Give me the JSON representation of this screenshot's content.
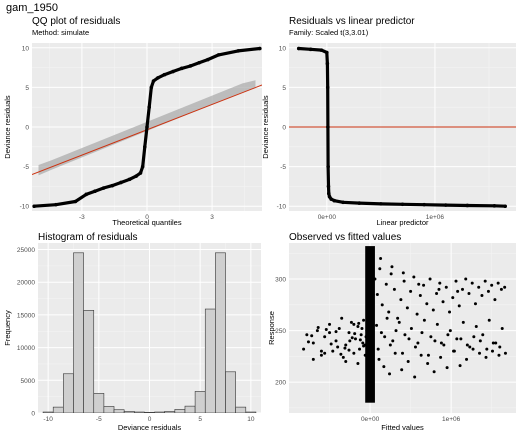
{
  "page": {
    "title": "gam_1950"
  },
  "colors": {
    "panel_bg": "#ebebeb",
    "grid_major": "#ffffff",
    "grid_minor": "#f5f5f5",
    "points": "#000000",
    "ref_line": "#cc3311",
    "band": "#a8a8a8",
    "bar_fill": "#cfcfcf",
    "bar_stroke": "#333333"
  },
  "chart_data": [
    {
      "id": "qq",
      "type": "line",
      "title": "QQ plot of residuals",
      "subtitle": "Method: simulate",
      "xlabel": "Theoretical quantiles",
      "ylabel": "Deviance residuals",
      "xlim": [
        -5.3,
        5.3
      ],
      "ylim": [
        -10.6,
        10.6
      ],
      "xticks": [
        -3,
        0,
        3
      ],
      "yticks": [
        -10,
        -5,
        0,
        5,
        10
      ],
      "reference_line": {
        "x": [
          -5.3,
          5.3
        ],
        "y": [
          -6.0,
          5.3
        ]
      },
      "band": {
        "x": [
          -5.0,
          -4.4,
          4.4,
          5.0
        ],
        "upper": [
          -4.8,
          -4.2,
          5.5,
          5.9
        ],
        "lower": [
          -6.1,
          -5.4,
          4.4,
          4.9
        ]
      },
      "series": [
        {
          "x": [
            -5.2,
            -4.2,
            -3.3,
            -2.8,
            -2.4,
            -2.0,
            -1.6,
            -1.2,
            -0.8,
            -0.5,
            -0.3,
            -0.2,
            -0.1,
            0.0,
            0.1,
            0.2,
            0.3,
            0.5,
            0.8,
            1.2,
            1.6,
            2.0,
            2.4,
            2.8,
            3.3,
            4.2,
            5.2
          ],
          "y": [
            -10.0,
            -9.8,
            -9.4,
            -8.5,
            -8.1,
            -7.7,
            -7.4,
            -7.0,
            -6.6,
            -6.2,
            -5.8,
            -5.0,
            -2.5,
            0.0,
            2.5,
            5.0,
            5.8,
            6.2,
            6.6,
            7.0,
            7.4,
            7.7,
            8.1,
            8.5,
            9.1,
            9.6,
            9.9
          ]
        }
      ]
    },
    {
      "id": "resid_lp",
      "type": "scatter",
      "title": "Residuals vs linear predictor",
      "subtitle": "Family: Scaled t(3,3.01)",
      "xlabel": "Linear predictor",
      "ylabel": "Deviance residuals",
      "xlim": [
        -350000,
        1750000
      ],
      "ylim": [
        -10.6,
        10.6
      ],
      "xticks": [
        0,
        1000000
      ],
      "xtick_labels": [
        "0e+00",
        "1e+06"
      ],
      "yticks": [
        -10,
        -5,
        0,
        5,
        10
      ],
      "hline": 0,
      "series": [
        {
          "x": [
            -260000,
            -150000,
            -50000,
            0,
            5000,
            8000,
            10000,
            12000,
            15000,
            18000,
            25000,
            40000,
            70000,
            150000,
            300000,
            500000,
            700000,
            900000,
            1100000,
            1300000,
            1550000,
            1650000
          ],
          "y": [
            9.9,
            9.8,
            9.7,
            9.4,
            8.0,
            5.0,
            0.0,
            -5.0,
            -7.5,
            -8.4,
            -8.8,
            -9.1,
            -9.3,
            -9.5,
            -9.6,
            -9.7,
            -9.75,
            -9.8,
            -9.85,
            -9.9,
            -9.95,
            -10.0
          ]
        }
      ]
    },
    {
      "id": "hist",
      "type": "bar",
      "title": "Histogram of residuals",
      "xlabel": "Deviance residuals",
      "ylabel": "Frequency",
      "xlim": [
        -11,
        11
      ],
      "ylim": [
        0,
        26000
      ],
      "xticks": [
        -10,
        -5,
        0,
        5,
        10
      ],
      "yticks": [
        0,
        5000,
        10000,
        15000,
        20000,
        25000
      ],
      "bin_width": 1,
      "bins": [
        -10.5,
        -9.5,
        -8.5,
        -7.5,
        -6.5,
        -5.5,
        -4.5,
        -3.5,
        -2.5,
        -1.5,
        -0.5,
        0.5,
        1.5,
        2.5,
        3.5,
        4.5,
        5.5,
        6.5,
        7.5,
        8.5,
        9.5
      ],
      "values": [
        150,
        900,
        6000,
        24500,
        15700,
        3000,
        1000,
        500,
        250,
        150,
        100,
        150,
        250,
        550,
        1050,
        3300,
        15900,
        24500,
        6300,
        900,
        150
      ]
    },
    {
      "id": "obs_fit",
      "type": "scatter",
      "title": "Observed vs fitted values",
      "xlabel": "Fitted values",
      "ylabel": "Response",
      "xlim": [
        -1000000,
        1800000
      ],
      "ylim": [
        170,
        335
      ],
      "xticks": [
        0,
        1000000
      ],
      "xtick_labels": [
        "0e+00",
        "1e+06"
      ],
      "yticks": [
        200,
        250,
        300
      ],
      "series": [
        {
          "x": [
            -820000,
            -780000,
            -700000,
            -650000,
            -600000,
            -560000,
            -500000,
            -460000,
            -420000,
            -380000,
            -330000,
            -300000,
            -260000,
            -230000,
            -200000,
            -180000,
            -150000,
            -130000,
            -110000,
            -90000,
            -80000,
            -60000,
            -50000,
            -40000,
            -700000,
            -600000,
            -500000,
            -400000,
            -350000,
            -300000,
            -250000,
            -200000,
            -150000,
            -100000,
            -60000,
            -720000,
            -560000,
            -420000,
            -310000,
            -190000,
            -120000,
            -640000,
            -480000,
            -260000,
            -140000,
            -760000,
            -540000,
            -360000,
            -220000,
            -80000,
            60000,
            90000,
            120000,
            150000,
            200000,
            230000,
            260000,
            300000,
            340000,
            380000,
            420000,
            460000,
            500000,
            540000,
            580000,
            620000,
            660000,
            700000,
            740000,
            780000,
            820000,
            860000,
            900000,
            940000,
            980000,
            1020000,
            1060000,
            1100000,
            1140000,
            1180000,
            1220000,
            1260000,
            1300000,
            1340000,
            1380000,
            1420000,
            1460000,
            1500000,
            1540000,
            1580000,
            1620000,
            1660000,
            80000,
            140000,
            210000,
            280000,
            360000,
            430000,
            510000,
            590000,
            670000,
            750000,
            830000,
            910000,
            990000,
            1070000,
            1150000,
            1230000,
            1310000,
            1390000,
            1470000,
            1550000,
            1630000,
            100000,
            180000,
            250000,
            320000,
            400000,
            480000,
            560000,
            640000,
            720000,
            800000,
            880000,
            960000,
            1040000,
            1120000,
            1200000,
            1280000,
            1360000,
            1440000,
            1520000,
            1600000,
            110000,
            170000,
            240000,
            310000,
            390000,
            470000,
            550000,
            630000,
            710000,
            790000,
            870000,
            950000,
            1030000,
            1110000,
            1190000,
            1270000,
            1350000,
            1430000,
            1510000,
            1590000,
            1670000,
            130000,
            270000,
            410000,
            600000,
            850000,
            1080000
          ],
          "y": [
            232,
            246,
            238,
            250,
            226,
            244,
            256,
            230,
            240,
            252,
            224,
            236,
            248,
            258,
            228,
            242,
            254,
            232,
            246,
            238,
            260,
            226,
            244,
            250,
            222,
            230,
            248,
            234,
            262,
            220,
            240,
            256,
            218,
            252,
            236,
            245,
            228,
            249,
            233,
            247,
            241,
            253,
            237,
            231,
            257,
            239,
            251,
            227,
            243,
            235,
            300,
            285,
            310,
            275,
            295,
            268,
            305,
            290,
            262,
            280,
            298,
            272,
            288,
            302,
            266,
            284,
            294,
            276,
            300,
            270,
            286,
            296,
            278,
            292,
            268,
            282,
            298,
            274,
            290,
            300,
            286,
            296,
            276,
            292,
            284,
            298,
            288,
            294,
            280,
            296,
            290,
            292,
            255,
            248,
            262,
            240,
            258,
            246,
            252,
            238,
            260,
            244,
            256,
            236,
            250,
            242,
            258,
            234,
            254,
            246,
            260,
            238,
            252,
            232,
            244,
            236,
            250,
            228,
            242,
            234,
            248,
            226,
            240,
            238,
            246,
            230,
            242,
            236,
            244,
            240,
            232,
            238,
            234,
            222,
            215,
            208,
            228,
            212,
            220,
            205,
            226,
            218,
            210,
            224,
            214,
            230,
            216,
            222,
            232,
            228,
            224,
            230,
            226,
            228,
            320,
            312,
            306,
            295,
            290,
            288
          ]
        }
      ]
    }
  ]
}
